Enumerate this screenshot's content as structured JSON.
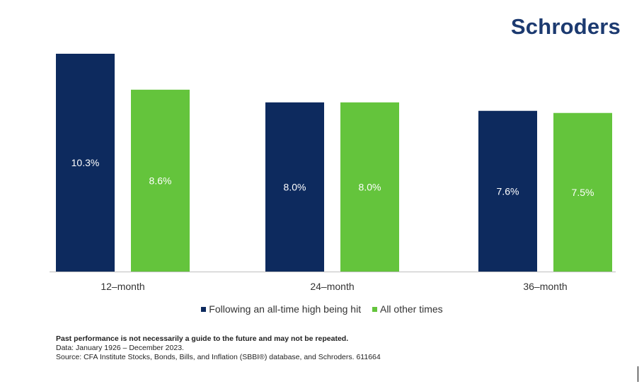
{
  "brand": {
    "logo_text": "Schroders",
    "logo_color": "#1c3a70"
  },
  "colors": {
    "series_following": "#0d2a5e",
    "series_other": "#64c43c",
    "axis_line": "#bfbfbf",
    "bar_label": "#ffffff"
  },
  "chart_data": {
    "type": "bar",
    "categories": [
      "12–month",
      "24–month",
      "36–month"
    ],
    "series": [
      {
        "name": "Following an all-time high being hit",
        "values": [
          10.3,
          8.0,
          7.6
        ],
        "labels": [
          "10.3%",
          "8.0%",
          "7.6%"
        ],
        "color": "#0d2a5e"
      },
      {
        "name": "All other times",
        "values": [
          8.6,
          8.0,
          7.5
        ],
        "labels": [
          "8.6%",
          "8.0%",
          "7.5%"
        ],
        "color": "#64c43c"
      }
    ],
    "ylim": [
      0,
      10.3
    ],
    "grid": false,
    "legend_position": "bottom"
  },
  "footnotes": {
    "disclaimer": "Past performance is not necessarily a guide to the future and may not be repeated.",
    "data_period": "Data: January 1926 – December 2023.",
    "source": "Source: CFA Institute Stocks, Bonds, Bills, and Inflation (SBBI®) database, and Schroders. 611664"
  }
}
